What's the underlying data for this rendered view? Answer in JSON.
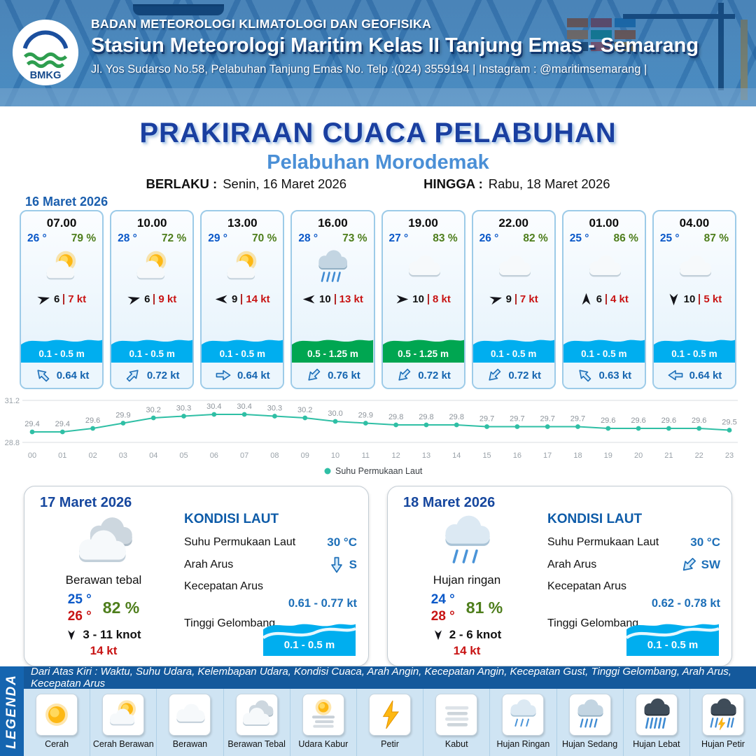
{
  "header": {
    "logo_text": "BMKG",
    "agency": "BADAN METEOROLOGI KLIMATOLOGI DAN GEOFISIKA",
    "station": "Stasiun Meteorologi Maritim Kelas II Tanjung Emas - Semarang",
    "address": "Jl. Yos Sudarso No.58, Pelabuhan Tanjung Emas No. Telp :(024) 3559194 | Instagram : @maritimsemarang |"
  },
  "title": {
    "main": "PRAKIRAAN CUACA PELABUHAN",
    "port": "Pelabuhan Morodemak",
    "valid_label": "BERLAKU :",
    "valid_value": "Senin, 16 Maret 2026",
    "until_label": "HINGGA :",
    "until_value": "Rabu, 18 Maret 2026"
  },
  "colors": {
    "header_blue": "#1565b0",
    "title_blue": "#1a3fa0",
    "subtitle_blue": "#4a8fd6",
    "temp_blue": "#0a58c8",
    "humidity_green": "#4e7e1c",
    "gust_red": "#c81414",
    "wave_blue": "#00aeef",
    "wave_green": "#00a651",
    "sst_line_teal": "#2fbfa5"
  },
  "forecast": {
    "date": "16 Maret 2026",
    "cards": [
      {
        "time": "07.00",
        "temp": "26 °",
        "humidity": "79 %",
        "icon": "cerah-berawan",
        "wind_dir_deg": -15,
        "wind_speed": "6",
        "gust": "7 kt",
        "wave": "0.1 - 0.5 m",
        "wave_color": "#00aeef",
        "current_dir_deg": -135,
        "current": "0.64 kt"
      },
      {
        "time": "10.00",
        "temp": "28 °",
        "humidity": "72 %",
        "icon": "cerah-berawan",
        "wind_dir_deg": -15,
        "wind_speed": "6",
        "gust": "9 kt",
        "wave": "0.1 - 0.5 m",
        "wave_color": "#00aeef",
        "current_dir_deg": -45,
        "current": "0.72 kt"
      },
      {
        "time": "13.00",
        "temp": "29 °",
        "humidity": "70 %",
        "icon": "cerah-berawan",
        "wind_dir_deg": 180,
        "wind_speed": "9",
        "gust": "14 kt",
        "wave": "0.1 - 0.5 m",
        "wave_color": "#00aeef",
        "current_dir_deg": 0,
        "current": "0.64 kt"
      },
      {
        "time": "16.00",
        "temp": "28 °",
        "humidity": "73 %",
        "icon": "hujan-sedang",
        "wind_dir_deg": 180,
        "wind_speed": "10",
        "gust": "13 kt",
        "wave": "0.5 - 1.25 m",
        "wave_color": "#00a651",
        "current_dir_deg": 135,
        "current": "0.76 kt"
      },
      {
        "time": "19.00",
        "temp": "27 °",
        "humidity": "83 %",
        "icon": "berawan",
        "wind_dir_deg": 0,
        "wind_speed": "10",
        "gust": "8 kt",
        "wave": "0.5 - 1.25 m",
        "wave_color": "#00a651",
        "current_dir_deg": 135,
        "current": "0.72 kt"
      },
      {
        "time": "22.00",
        "temp": "26 °",
        "humidity": "82 %",
        "icon": "berawan",
        "wind_dir_deg": -15,
        "wind_speed": "9",
        "gust": "7 kt",
        "wave": "0.1 - 0.5 m",
        "wave_color": "#00aeef",
        "current_dir_deg": 135,
        "current": "0.72 kt"
      },
      {
        "time": "01.00",
        "temp": "25 °",
        "humidity": "86 %",
        "icon": "berawan",
        "wind_dir_deg": -90,
        "wind_speed": "6",
        "gust": "4 kt",
        "wave": "0.1 - 0.5 m",
        "wave_color": "#00aeef",
        "current_dir_deg": -135,
        "current": "0.63 kt"
      },
      {
        "time": "04.00",
        "temp": "25 °",
        "humidity": "87 %",
        "icon": "berawan",
        "wind_dir_deg": 90,
        "wind_speed": "10",
        "gust": "5 kt",
        "wave": "0.1 - 0.5 m",
        "wave_color": "#00aeef",
        "current_dir_deg": 180,
        "current": "0.64 kt"
      }
    ]
  },
  "chart_data": {
    "type": "line",
    "series_name": "Suhu Permukaan Laut",
    "x": [
      "00",
      "01",
      "02",
      "03",
      "04",
      "05",
      "06",
      "07",
      "08",
      "09",
      "10",
      "11",
      "12",
      "13",
      "14",
      "15",
      "16",
      "17",
      "18",
      "19",
      "20",
      "21",
      "22",
      "23"
    ],
    "values": [
      29.4,
      29.4,
      29.6,
      29.9,
      30.2,
      30.3,
      30.4,
      30.4,
      30.3,
      30.2,
      30.0,
      29.9,
      29.8,
      29.8,
      29.8,
      29.7,
      29.7,
      29.7,
      29.7,
      29.6,
      29.6,
      29.6,
      29.6,
      29.5
    ],
    "ylim": [
      28.8,
      31.2
    ],
    "line_color": "#2fbfa5",
    "grid": true,
    "legend_position": "bottom",
    "ylabel": "",
    "xlabel": ""
  },
  "daily": [
    {
      "date": "17 Maret 2026",
      "icon": "berawan-tebal",
      "condition": "Berawan tebal",
      "temp_min": "25 °",
      "temp_max": "26 °",
      "humidity": "82 %",
      "wind_dir_deg": 90,
      "wind": "3 - 11 knot",
      "gust": "14 kt",
      "sea": {
        "heading": "KONDISI LAUT",
        "sst_label": "Suhu Permukaan Laut",
        "sst": "30 °C",
        "current_dir_label": "Arah Arus",
        "current_dir": "S",
        "current_dir_deg": 90,
        "current_speed_label": "Kecepatan Arus",
        "current_speed": "0.61 - 0.77 kt",
        "wave_label": "Tinggi Gelombang",
        "wave": "0.1 - 0.5 m",
        "wave_color": "#00aeef"
      }
    },
    {
      "date": "18 Maret 2026",
      "icon": "hujan-ringan",
      "condition": "Hujan ringan",
      "temp_min": "24 °",
      "temp_max": "28 °",
      "humidity": "81 %",
      "wind_dir_deg": 90,
      "wind": "2 - 6 knot",
      "gust": "14 kt",
      "sea": {
        "heading": "KONDISI LAUT",
        "sst_label": "Suhu Permukaan Laut",
        "sst": "30 °C",
        "current_dir_label": "Arah Arus",
        "current_dir": "SW",
        "current_dir_deg": 135,
        "current_speed_label": "Kecepatan Arus",
        "current_speed": "0.62 - 0.78 kt",
        "wave_label": "Tinggi Gelombang",
        "wave": "0.1 - 0.5 m",
        "wave_color": "#00aeef"
      }
    }
  ],
  "legend": {
    "title": "LEGENDA",
    "description": "Dari Atas Kiri : Waktu, Suhu Udara, Kelembapan Udara, Kondisi Cuaca, Arah Angin, Kecepatan Angin, Kecepatan Gust, Tinggi Gelombang, Arah Arus, Kecepatan Arus",
    "items": [
      {
        "label": "Cerah",
        "icon": "cerah"
      },
      {
        "label": "Cerah Berawan",
        "icon": "cerah-berawan"
      },
      {
        "label": "Berawan",
        "icon": "berawan"
      },
      {
        "label": "Berawan Tebal",
        "icon": "berawan-tebal"
      },
      {
        "label": "Udara Kabur",
        "icon": "udara-kabur"
      },
      {
        "label": "Petir",
        "icon": "petir"
      },
      {
        "label": "Kabut",
        "icon": "kabut"
      },
      {
        "label": "Hujan Ringan",
        "icon": "hujan-ringan"
      },
      {
        "label": "Hujan Sedang",
        "icon": "hujan-sedang"
      },
      {
        "label": "Hujan Lebat",
        "icon": "hujan-lebat"
      },
      {
        "label": "Hujan Petir",
        "icon": "hujan-petir"
      }
    ]
  }
}
